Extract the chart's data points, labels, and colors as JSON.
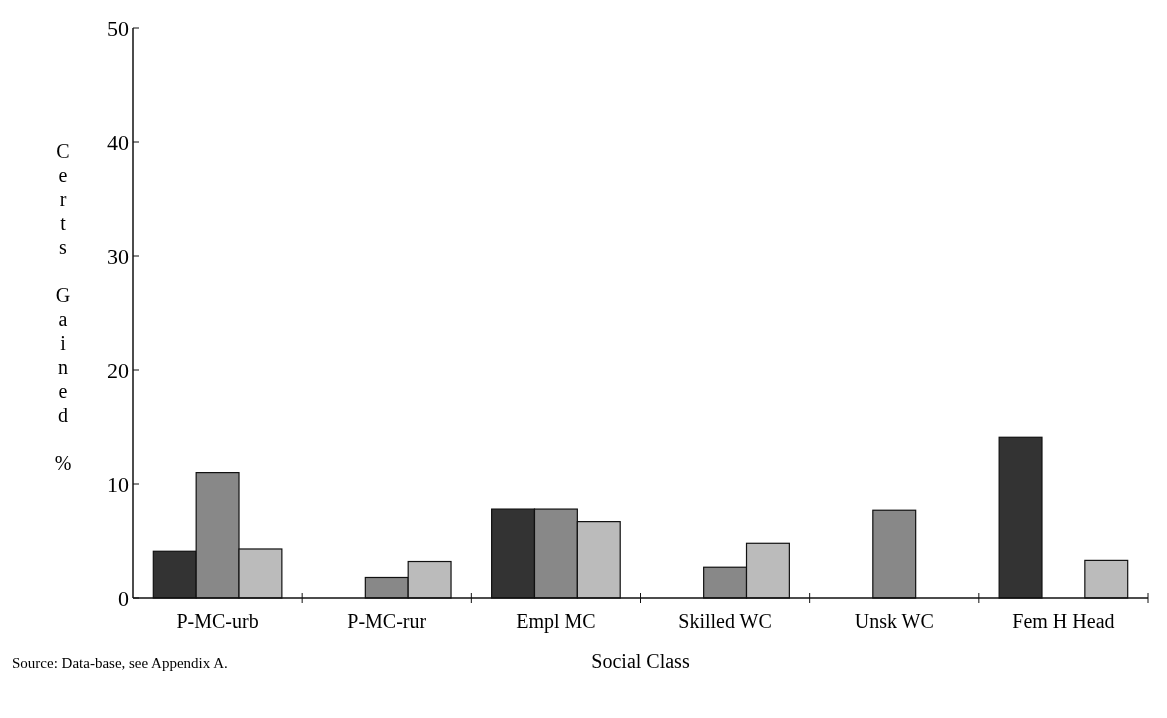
{
  "chart_data": {
    "type": "bar",
    "xlabel": "Social Class",
    "ylabel": "Certs Gained %",
    "categories": [
      "P-MC-urb",
      "P-MC-rur",
      "Empl MC",
      "Skilled WC",
      "Unsk WC",
      "Fem H Head"
    ],
    "series": [
      {
        "color": "#333333",
        "values": [
          4.1,
          null,
          7.8,
          null,
          null,
          14.1
        ]
      },
      {
        "color": "#888888",
        "values": [
          11,
          1.8,
          7.8,
          2.7,
          7.7,
          null
        ]
      },
      {
        "color": "#bbbbbb",
        "values": [
          4.3,
          3.2,
          6.7,
          4.8,
          null,
          3.3
        ]
      }
    ],
    "ylim": [
      0,
      50
    ],
    "yticks": [
      0,
      10,
      20,
      30,
      40,
      50
    ],
    "grid": false,
    "annotations": [
      "Source: Data-base, see Appendix A."
    ]
  }
}
